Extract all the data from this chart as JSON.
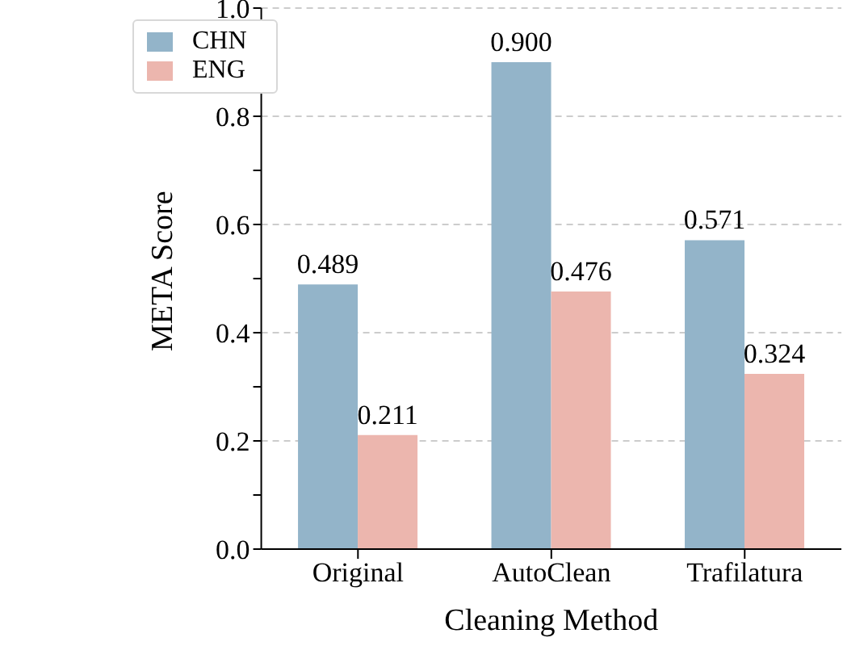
{
  "chart_data": {
    "type": "bar",
    "xlabel": "Cleaning Method",
    "ylabel": "META Score",
    "categories": [
      "Original",
      "AutoClean",
      "Trafilatura"
    ],
    "series": [
      {
        "name": "CHN",
        "color": "#93b4c9",
        "values": [
          0.489,
          0.9,
          0.571
        ],
        "value_labels": [
          "0.489",
          "0.900",
          "0.571"
        ]
      },
      {
        "name": "ENG",
        "color": "#ecb6ae",
        "values": [
          0.211,
          0.476,
          0.324
        ],
        "value_labels": [
          "0.211",
          "0.476",
          "0.324"
        ]
      }
    ],
    "ylim": [
      0,
      1
    ],
    "yticks": [
      {
        "value": 0,
        "label": "0.0"
      },
      {
        "value": 0.1,
        "label": null
      },
      {
        "value": 0.2,
        "label": "0.2"
      },
      {
        "value": 0.3,
        "label": null
      },
      {
        "value": 0.4,
        "label": "0.4"
      },
      {
        "value": 0.5,
        "label": null
      },
      {
        "value": 0.6,
        "label": "0.6"
      },
      {
        "value": 0.7,
        "label": null
      },
      {
        "value": 0.8,
        "label": "0.8"
      },
      {
        "value": 0.9,
        "label": null
      },
      {
        "value": 1,
        "label": "1.0"
      }
    ],
    "grid": "y",
    "legend": "top left"
  }
}
